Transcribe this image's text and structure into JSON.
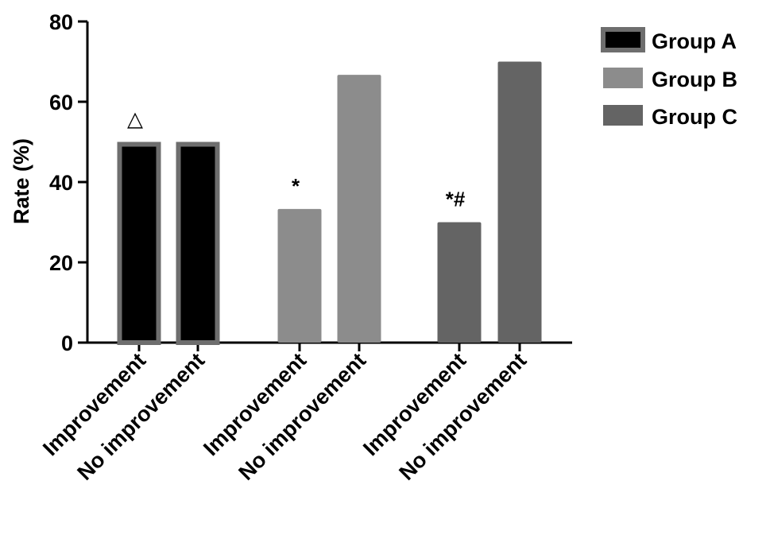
{
  "chart_data": {
    "type": "bar",
    "ylabel": "Rate (%)",
    "ylim": [
      0,
      80
    ],
    "yticks": [
      0,
      20,
      40,
      60,
      80
    ],
    "categories": [
      "Improvement",
      "No improvement",
      "Improvement",
      "No improvement",
      "Improvement",
      "No improvement"
    ],
    "groups": [
      {
        "name": "Group A",
        "fill": "#000000",
        "stroke": "#6e6e6e",
        "bars": [
          {
            "category": "Improvement",
            "value": 50,
            "annotation": "△"
          },
          {
            "category": "No improvement",
            "value": 50,
            "annotation": ""
          }
        ]
      },
      {
        "name": "Group B",
        "fill": "#8c8c8c",
        "stroke": "#8c8c8c",
        "bars": [
          {
            "category": "Improvement",
            "value": 33.3,
            "annotation": "*"
          },
          {
            "category": "No improvement",
            "value": 66.7,
            "annotation": ""
          }
        ]
      },
      {
        "name": "Group C",
        "fill": "#646464",
        "stroke": "#646464",
        "bars": [
          {
            "category": "Improvement",
            "value": 30,
            "annotation": "*#"
          },
          {
            "category": "No improvement",
            "value": 70,
            "annotation": ""
          }
        ]
      }
    ],
    "legend": {
      "position": "top-right",
      "entries": [
        "Group A",
        "Group B",
        "Group C"
      ]
    },
    "grid": false
  }
}
